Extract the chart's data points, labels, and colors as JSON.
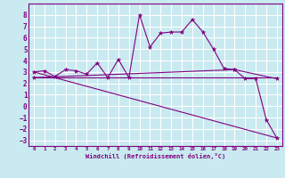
{
  "background_color": "#c8eaf0",
  "grid_color": "#ffffff",
  "line_color": "#800080",
  "xlabel": "Windchill (Refroidissement éolien,°C)",
  "xlim": [
    -0.5,
    23.5
  ],
  "ylim": [
    -3.5,
    9.0
  ],
  "xticks": [
    0,
    1,
    2,
    3,
    4,
    5,
    6,
    7,
    8,
    9,
    10,
    11,
    12,
    13,
    14,
    15,
    16,
    17,
    18,
    19,
    20,
    21,
    22,
    23
  ],
  "yticks": [
    -3,
    -2,
    -1,
    0,
    1,
    2,
    3,
    4,
    5,
    6,
    7,
    8
  ],
  "series": [
    {
      "x": [
        0,
        1,
        2,
        3,
        4,
        5,
        6,
        7,
        8,
        9,
        10,
        11,
        12,
        13,
        14,
        15,
        16,
        17,
        18,
        19,
        20,
        21,
        22,
        23
      ],
      "y": [
        3.0,
        3.1,
        2.6,
        3.2,
        3.1,
        2.8,
        3.8,
        2.5,
        4.1,
        2.5,
        8.0,
        5.2,
        6.4,
        6.5,
        6.5,
        7.6,
        6.5,
        5.0,
        3.3,
        3.2,
        2.4,
        2.4,
        -1.2,
        -2.8
      ],
      "has_markers": true
    },
    {
      "x": [
        0,
        23
      ],
      "y": [
        3.0,
        -2.8
      ],
      "has_markers": false
    },
    {
      "x": [
        0,
        19,
        23
      ],
      "y": [
        2.5,
        3.2,
        2.4
      ],
      "has_markers": true
    },
    {
      "x": [
        0,
        23
      ],
      "y": [
        2.5,
        2.5
      ],
      "has_markers": false
    }
  ]
}
